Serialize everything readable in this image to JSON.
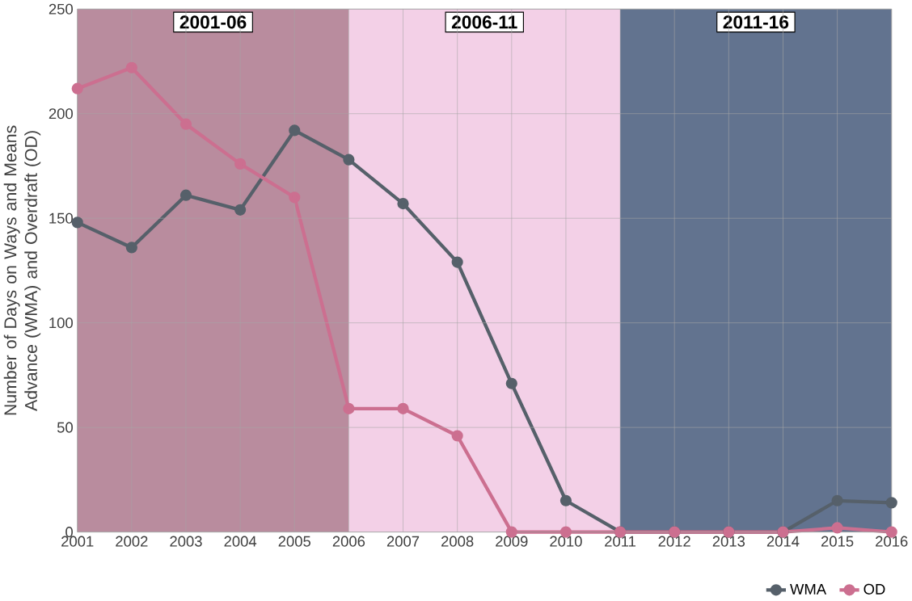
{
  "chart_data": {
    "type": "line",
    "ylabel": "Number of Days on  Ways and Means Advance (WMA) and Overdraft (OD)",
    "x": [
      2001,
      2002,
      2003,
      2004,
      2005,
      2006,
      2007,
      2008,
      2009,
      2010,
      2011,
      2012,
      2013,
      2014,
      2015,
      2016
    ],
    "series": [
      {
        "name": "WMA",
        "color": "#56606a",
        "values": [
          148,
          136,
          161,
          154,
          192,
          178,
          157,
          129,
          71,
          15,
          0,
          0,
          0,
          0,
          15,
          14
        ]
      },
      {
        "name": "OD",
        "color": "#cc6f90",
        "values": [
          212,
          222,
          195,
          176,
          160,
          59,
          59,
          46,
          0,
          0,
          0,
          0,
          0,
          0,
          2,
          0
        ]
      }
    ],
    "xlim": [
      2001,
      2016
    ],
    "xticks": [
      2001,
      2002,
      2003,
      2004,
      2005,
      2006,
      2007,
      2008,
      2009,
      2010,
      2011,
      2012,
      2013,
      2014,
      2015,
      2016
    ],
    "ylim": [
      0,
      250
    ],
    "yticks": [
      0,
      50,
      100,
      150,
      200,
      250
    ],
    "bands": [
      {
        "axis": "x",
        "from": 2001,
        "to": 2006,
        "label": "2001-06",
        "color": "#b98c9e"
      },
      {
        "axis": "x",
        "from": 2006,
        "to": 2011,
        "label": "2006-11",
        "color": "#f3d0e7"
      },
      {
        "axis": "x",
        "from": 2011,
        "to": 2016,
        "label": "2011-16",
        "color": "#62738f"
      }
    ],
    "grid": true,
    "legend": "bottom right",
    "marker": "circle",
    "line_style": "solid"
  }
}
